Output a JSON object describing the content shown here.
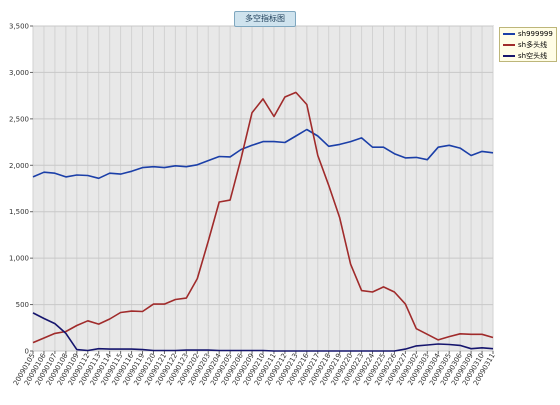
{
  "chart_data": {
    "type": "line",
    "title": "多空指标图",
    "ylim": [
      0,
      3500
    ],
    "yticks": [
      "0",
      "500",
      "1,000",
      "1,500",
      "2,000",
      "2,500",
      "3,000",
      "3,500"
    ],
    "ytick_values": [
      0,
      500,
      1000,
      1500,
      2000,
      2500,
      3000,
      3500
    ],
    "x": [
      "20090105",
      "20090106",
      "20090107",
      "20090108",
      "20090109",
      "20090112",
      "20090113",
      "20090114",
      "20090115",
      "20090116",
      "20090119",
      "20090120",
      "20090121",
      "20090122",
      "20090123",
      "20090202",
      "20090203",
      "20090204",
      "20090205",
      "20090206",
      "20090209",
      "20090210",
      "20090211",
      "20090212",
      "20090213",
      "20090216",
      "20090217",
      "20090218",
      "20090219",
      "20090220",
      "20090223",
      "20090224",
      "20090225",
      "20090226",
      "20090227",
      "20090302",
      "20090303",
      "20090304",
      "20090305",
      "20090306",
      "20090309",
      "20090310",
      "20090311"
    ],
    "legend_position": "right-top",
    "grid": true,
    "series": [
      {
        "name": "sh999999",
        "color": "#1b3fa8",
        "values": [
          1875,
          1925,
          1915,
          1875,
          1895,
          1890,
          1860,
          1915,
          1905,
          1935,
          1975,
          1985,
          1975,
          1995,
          1985,
          2005,
          2050,
          2095,
          2090,
          2170,
          2215,
          2255,
          2255,
          2245,
          2315,
          2385,
          2315,
          2205,
          2225,
          2255,
          2295,
          2195,
          2195,
          2125,
          2080,
          2085,
          2060,
          2195,
          2215,
          2185,
          2105,
          2150,
          2135
        ]
      },
      {
        "name": "sh多头线",
        "color": "#a02b2b",
        "values": [
          90,
          140,
          190,
          210,
          275,
          325,
          290,
          345,
          415,
          430,
          425,
          505,
          505,
          555,
          570,
          780,
          1180,
          1605,
          1625,
          2075,
          2565,
          2715,
          2525,
          2735,
          2785,
          2655,
          2105,
          1785,
          1435,
          935,
          650,
          635,
          690,
          635,
          505,
          240,
          180,
          120,
          155,
          185,
          180,
          180,
          145
        ]
      },
      {
        "name": "sh空头线",
        "color": "#16166e",
        "values": [
          410,
          350,
          295,
          190,
          15,
          5,
          25,
          20,
          20,
          20,
          15,
          5,
          5,
          5,
          10,
          10,
          10,
          5,
          5,
          5,
          5,
          5,
          0,
          0,
          0,
          0,
          0,
          0,
          0,
          0,
          0,
          0,
          0,
          0,
          20,
          55,
          65,
          75,
          70,
          60,
          25,
          35,
          25
        ]
      }
    ]
  }
}
